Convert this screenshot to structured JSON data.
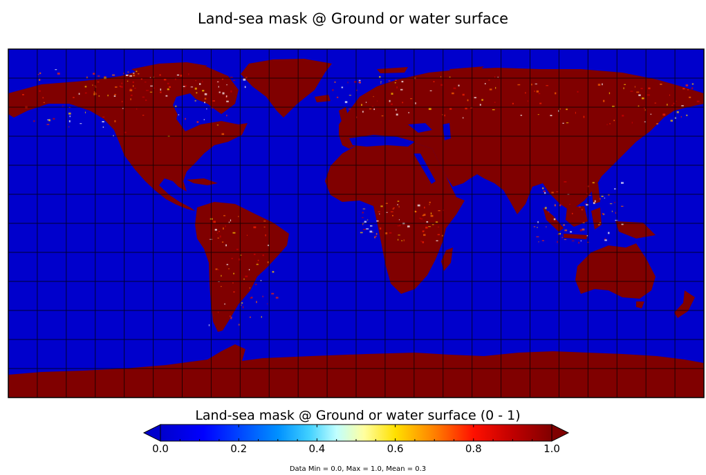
{
  "title": "Land-sea mask @ Ground or water surface",
  "colorbar": {
    "label": "Land-sea mask @ Ground or water surface (0 - 1)",
    "min": 0.0,
    "max": 1.0,
    "ticks": [
      "0.0",
      "0.2",
      "0.4",
      "0.6",
      "0.8",
      "1.0"
    ],
    "colormap": "jet",
    "extend_colors": {
      "low": "#0000cc",
      "high": "#800000"
    }
  },
  "stats": "Data Min = 0.0, Max = 1.0, Mean = 0.3",
  "map": {
    "projection": "equirectangular",
    "lon_range": [
      -180,
      180
    ],
    "lat_range": [
      -90,
      90
    ],
    "gridline_spacing_deg": 15,
    "sea_value": 0.0,
    "land_value": 1.0,
    "colors": {
      "sea": "#0000cc",
      "land": "#800000",
      "coastline_mix": "#ff2200",
      "gridline": "#000000"
    }
  }
}
